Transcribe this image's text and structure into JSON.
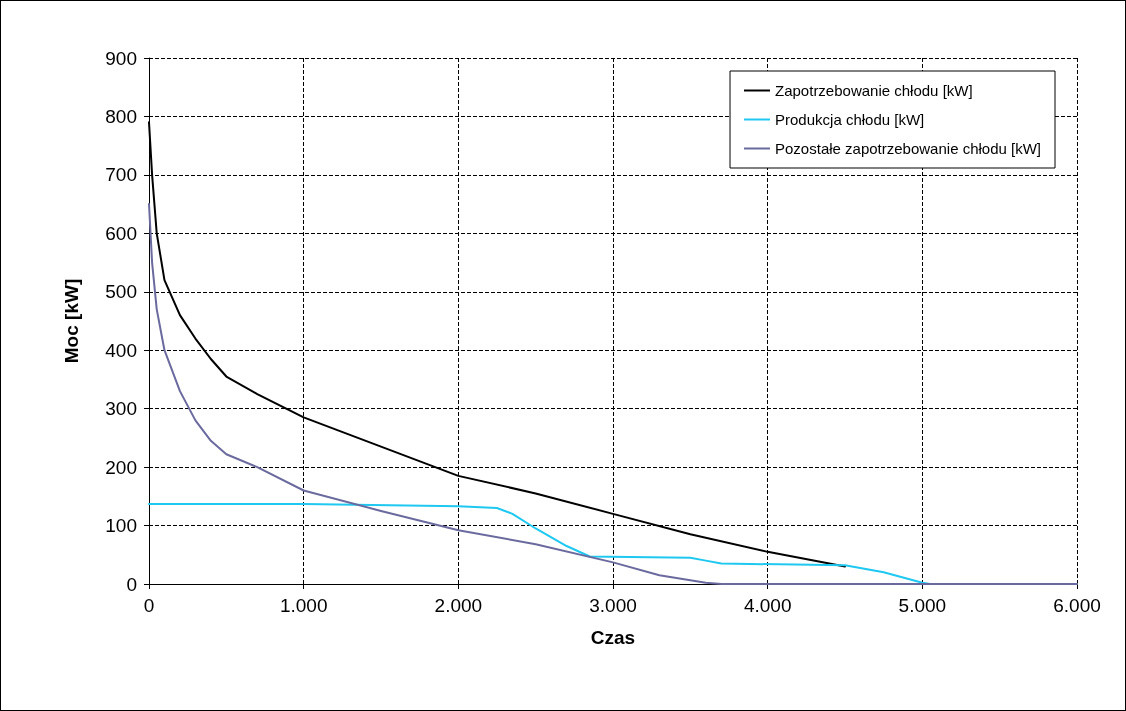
{
  "chart_data": {
    "type": "line",
    "xlabel": "Czas",
    "ylabel": "Moc [kW]",
    "xlim": [
      0,
      6000
    ],
    "xticks": [
      0,
      {
        "value": 1000,
        "label": "1.000"
      },
      {
        "value": 2000,
        "label": "2.000"
      },
      {
        "value": 3000,
        "label": "3.000"
      },
      {
        "value": 4000,
        "label": "4.000"
      },
      {
        "value": 5000,
        "label": "5.000"
      },
      {
        "value": 6000,
        "label": "6.000"
      }
    ],
    "ylim": [
      0,
      900
    ],
    "yticks": [
      0,
      100,
      200,
      300,
      400,
      500,
      600,
      700,
      800,
      900
    ],
    "grid": true,
    "legend": "top right",
    "marker": "none",
    "line_style": "solid",
    "series": [
      {
        "name": "Zapotrzebowanie chłodu [kW]",
        "color": "#000000",
        "x": [
          0,
          20,
          50,
          100,
          200,
          300,
          400,
          500,
          700,
          1000,
          1500,
          2000,
          2500,
          3000,
          3500,
          4000,
          4500
        ],
        "values": [
          790,
          700,
          600,
          520,
          460,
          420,
          385,
          355,
          325,
          285,
          235,
          185,
          155,
          120,
          85,
          55,
          30
        ]
      },
      {
        "name": "Produkcja chłodu [kW]",
        "color": "#1ec8f0",
        "x": [
          0,
          1000,
          2000,
          2250,
          2350,
          2500,
          2700,
          2850,
          3500,
          3600,
          3700,
          4500,
          4750,
          5000,
          5050,
          6000
        ],
        "values": [
          137,
          137,
          133,
          130,
          120,
          95,
          65,
          47,
          45,
          40,
          35,
          32,
          20,
          2,
          0,
          0
        ]
      },
      {
        "name": "Pozostałe zapotrzebowanie chłodu [kW]",
        "color": "#6a6a9e",
        "x": [
          0,
          20,
          50,
          100,
          200,
          300,
          400,
          500,
          700,
          1000,
          1500,
          2000,
          2500,
          3000,
          3300,
          3600,
          3700,
          6000
        ],
        "values": [
          650,
          550,
          470,
          400,
          330,
          280,
          245,
          222,
          200,
          160,
          125,
          92,
          68,
          37,
          15,
          2,
          0,
          0
        ]
      }
    ]
  }
}
